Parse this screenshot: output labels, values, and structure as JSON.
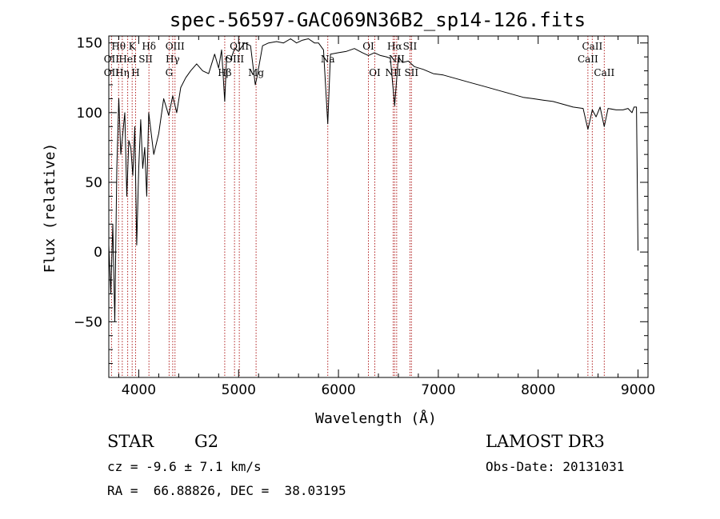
{
  "chart_data": {
    "type": "line",
    "title": "spec-56597-GAC069N36B2_sp14-126.fits",
    "xlabel": "Wavelength (Å)",
    "ylabel": "Flux (relative)",
    "xlim": [
      3700,
      9100
    ],
    "ylim": [
      -90,
      155
    ],
    "xticks": [
      4000,
      5000,
      6000,
      7000,
      8000,
      9000
    ],
    "yticks": [
      -50,
      0,
      50,
      100,
      150
    ],
    "spectrum": {
      "x": [
        3700,
        3720,
        3740,
        3760,
        3780,
        3800,
        3820,
        3840,
        3860,
        3880,
        3900,
        3920,
        3940,
        3960,
        3980,
        4000,
        4020,
        4040,
        4060,
        4080,
        4100,
        4150,
        4200,
        4250,
        4300,
        4340,
        4380,
        4420,
        4470,
        4520,
        4580,
        4640,
        4700,
        4760,
        4800,
        4830,
        4861,
        4880,
        4920,
        4960,
        5000,
        5060,
        5120,
        5167,
        5183,
        5240,
        5300,
        5380,
        5450,
        5520,
        5580,
        5640,
        5700,
        5760,
        5800,
        5850,
        5893,
        5920,
        6000,
        6080,
        6160,
        6240,
        6300,
        6360,
        6420,
        6480,
        6520,
        6563,
        6600,
        6640,
        6700,
        6760,
        6850,
        6950,
        7050,
        7150,
        7250,
        7350,
        7450,
        7550,
        7650,
        7750,
        7850,
        7950,
        8050,
        8150,
        8250,
        8350,
        8450,
        8498,
        8542,
        8580,
        8620,
        8662,
        8700,
        8780,
        8850,
        8900,
        8940,
        8960,
        8985,
        9000
      ],
      "y": [
        5,
        -30,
        20,
        -50,
        60,
        110,
        70,
        85,
        100,
        40,
        80,
        75,
        55,
        90,
        5,
        60,
        95,
        60,
        75,
        40,
        100,
        70,
        85,
        110,
        98,
        112,
        100,
        118,
        125,
        130,
        135,
        130,
        128,
        142,
        132,
        145,
        108,
        140,
        138,
        146,
        144,
        150,
        148,
        120,
        125,
        148,
        150,
        151,
        150,
        153,
        150,
        152,
        153,
        150,
        150,
        145,
        92,
        142,
        143,
        144,
        146,
        143,
        141,
        143,
        141,
        140,
        139,
        105,
        140,
        136,
        137,
        133,
        131,
        128,
        127,
        125,
        123,
        121,
        119,
        117,
        115,
        113,
        111,
        110,
        109,
        108,
        106,
        104,
        103,
        88,
        102,
        97,
        104,
        90,
        103,
        102,
        102,
        103,
        100,
        104,
        104,
        1
      ]
    },
    "lines": [
      {
        "label": "Hθ",
        "wl": 3798,
        "row": 1
      },
      {
        "label": "OII",
        "wl": 3727,
        "row": 2
      },
      {
        "label": "OII",
        "wl": 3727,
        "row": 3
      },
      {
        "label": "Hη",
        "wl": 3835,
        "row": 3
      },
      {
        "label": "HeI",
        "wl": 3889,
        "row": 2
      },
      {
        "label": "K",
        "wl": 3934,
        "row": 1
      },
      {
        "label": "SII",
        "wl": 4069,
        "row": 2
      },
      {
        "label": "H",
        "wl": 3968,
        "row": 3
      },
      {
        "label": "Hδ",
        "wl": 4102,
        "row": 1
      },
      {
        "label": "OIII",
        "wl": 4363,
        "row": 1
      },
      {
        "label": "Hγ",
        "wl": 4340,
        "row": 2
      },
      {
        "label": "G",
        "wl": 4304,
        "row": 3
      },
      {
        "label": "OIII",
        "wl": 5007,
        "row": 1
      },
      {
        "label": "OIII",
        "wl": 4959,
        "row": 2
      },
      {
        "label": "Hβ",
        "wl": 4861,
        "row": 3
      },
      {
        "label": "Mg",
        "wl": 5175,
        "row": 3
      },
      {
        "label": "Na",
        "wl": 5893,
        "row": 2
      },
      {
        "label": "OI",
        "wl": 6300,
        "row": 1
      },
      {
        "label": "OI",
        "wl": 6364,
        "row": 3
      },
      {
        "label": "Hα",
        "wl": 6563,
        "row": 1
      },
      {
        "label": "SII",
        "wl": 6716,
        "row": 1
      },
      {
        "label": "NII",
        "wl": 6583,
        "row": 2
      },
      {
        "label": "NII",
        "wl": 6548,
        "row": 3
      },
      {
        "label": "SII",
        "wl": 6731,
        "row": 3
      },
      {
        "label": "CaII",
        "wl": 8542,
        "row": 1
      },
      {
        "label": "CaII",
        "wl": 8498,
        "row": 2
      },
      {
        "label": "CaII",
        "wl": 8662,
        "row": 3
      }
    ],
    "marker_wavelengths": [
      3727,
      3798,
      3835,
      3889,
      3934,
      3968,
      4102,
      4304,
      4340,
      4363,
      4861,
      4959,
      5007,
      5175,
      5893,
      6300,
      6364,
      6548,
      6563,
      6583,
      6716,
      6731,
      8498,
      8542,
      8662
    ],
    "colors": {
      "spectrum": "#000000",
      "markers": "#b22222"
    }
  },
  "info": {
    "object_class": "STAR",
    "subclass": "G2",
    "redshift": "cz = -9.6 ± 7.1 km/s",
    "coords": "RA =  66.88826, DEC =  38.03195",
    "survey": "LAMOST DR3",
    "obs_date": "Obs-Date: 20131031"
  }
}
